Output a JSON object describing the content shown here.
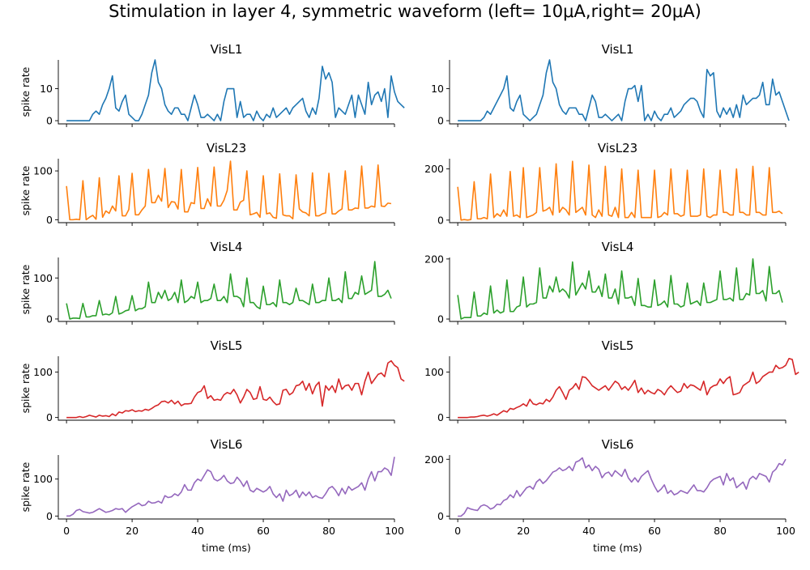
{
  "figure": {
    "suptitle": "Stimulation in layer 4, symmetric waveform (left= 10μA,right= 20μA)"
  },
  "chart_data": [
    {
      "type": "line",
      "title": "VisL1",
      "ylabel": "spike rate",
      "xlabel": "",
      "color": "#1f77b4",
      "xlim": [
        -2.5,
        100
      ],
      "ylim": [
        -1,
        19
      ],
      "yticks": [
        0,
        10
      ],
      "xticks": [
        0,
        20,
        40,
        60,
        80,
        100
      ],
      "show_xticklabels": false,
      "x_start": 0,
      "x_step": 1,
      "values": [
        0,
        0,
        0,
        0,
        0,
        0,
        0,
        0,
        2,
        3,
        2,
        5,
        7,
        10,
        14,
        4,
        3,
        6,
        8,
        2,
        1,
        0,
        0,
        2,
        5,
        8,
        15,
        19,
        12,
        10,
        5,
        3,
        2,
        4,
        4,
        2,
        2,
        0,
        4,
        8,
        5,
        1,
        1,
        2,
        1,
        0,
        2,
        0,
        6,
        10,
        10,
        10,
        1,
        6,
        1,
        2,
        2,
        0,
        3,
        1,
        0,
        2,
        1,
        4,
        1,
        2,
        3,
        4,
        2,
        4,
        5,
        6,
        7,
        3,
        1,
        4,
        2,
        7,
        17,
        13,
        15,
        12,
        1,
        4,
        3,
        2,
        5,
        8,
        1,
        8,
        5,
        2,
        12,
        5,
        8,
        9,
        6,
        10,
        1,
        14,
        9,
        6,
        5,
        4
      ]
    },
    {
      "type": "line",
      "title": "VisL1",
      "ylabel": "",
      "xlabel": "",
      "color": "#1f77b4",
      "xlim": [
        -2.5,
        100
      ],
      "ylim": [
        -1,
        19
      ],
      "yticks": [
        0,
        10
      ],
      "xticks": [
        0,
        20,
        40,
        60,
        80,
        100
      ],
      "show_xticklabels": false,
      "x_start": 0,
      "x_step": 1,
      "values": [
        0,
        0,
        0,
        0,
        0,
        0,
        0,
        0,
        1,
        3,
        2,
        4,
        6,
        8,
        10,
        14,
        4,
        3,
        6,
        8,
        2,
        1,
        0,
        1,
        2,
        5,
        8,
        15,
        19,
        12,
        10,
        5,
        3,
        2,
        4,
        4,
        4,
        2,
        2,
        0,
        4,
        8,
        6,
        1,
        1,
        2,
        1,
        0,
        1,
        2,
        0,
        6,
        10,
        10,
        11,
        6,
        11,
        0,
        2,
        0,
        3,
        1,
        0,
        2,
        2,
        4,
        1,
        2,
        3,
        5,
        6,
        7,
        7,
        6,
        3,
        1,
        16,
        14,
        15,
        3,
        1,
        4,
        2,
        4,
        1,
        5,
        1,
        8,
        5,
        6,
        7,
        7,
        8,
        12,
        5,
        5,
        13,
        8,
        9,
        6,
        3,
        0
      ]
    },
    {
      "type": "line",
      "title": "VisL23",
      "ylabel": "spike rate",
      "xlabel": "",
      "color": "#ff7f0e",
      "xlim": [
        -2.5,
        100
      ],
      "ylim": [
        -6,
        125
      ],
      "yticks": [
        0,
        100
      ],
      "xticks": [
        0,
        20,
        40,
        60,
        80,
        100
      ],
      "show_xticklabels": false,
      "x_start": 0,
      "x_step": 1,
      "values": [
        69,
        0,
        0,
        1,
        0,
        80,
        0,
        5,
        9,
        1,
        86,
        5,
        18,
        13,
        28,
        18,
        90,
        8,
        8,
        21,
        95,
        10,
        10,
        20,
        28,
        103,
        35,
        35,
        50,
        38,
        105,
        25,
        37,
        36,
        22,
        103,
        16,
        16,
        35,
        33,
        107,
        23,
        23,
        43,
        28,
        108,
        28,
        28,
        40,
        60,
        120,
        20,
        20,
        36,
        40,
        100,
        10,
        12,
        15,
        5,
        90,
        12,
        14,
        5,
        3,
        94,
        10,
        8,
        8,
        2,
        92,
        22,
        16,
        14,
        8,
        96,
        8,
        8,
        12,
        14,
        95,
        12,
        12,
        18,
        22,
        100,
        20,
        20,
        24,
        23,
        110,
        24,
        24,
        28,
        26,
        112,
        28,
        27,
        34,
        33
      ]
    },
    {
      "type": "line",
      "title": "VisL23",
      "ylabel": "",
      "xlabel": "",
      "color": "#ff7f0e",
      "xlim": [
        -2.5,
        100
      ],
      "ylim": [
        -10,
        240
      ],
      "yticks": [
        0,
        200
      ],
      "xticks": [
        0,
        20,
        40,
        60,
        80,
        100
      ],
      "show_xticklabels": false,
      "x_start": 0,
      "x_step": 1,
      "values": [
        130,
        0,
        2,
        0,
        2,
        150,
        5,
        5,
        10,
        5,
        180,
        10,
        25,
        15,
        40,
        15,
        190,
        15,
        20,
        10,
        205,
        10,
        15,
        20,
        30,
        205,
        35,
        40,
        50,
        20,
        220,
        30,
        50,
        40,
        20,
        230,
        30,
        40,
        50,
        20,
        215,
        20,
        10,
        40,
        15,
        210,
        20,
        15,
        50,
        10,
        200,
        10,
        10,
        30,
        10,
        195,
        10,
        10,
        10,
        10,
        195,
        10,
        15,
        30,
        20,
        200,
        25,
        25,
        15,
        20,
        195,
        15,
        15,
        15,
        20,
        200,
        15,
        10,
        20,
        20,
        195,
        30,
        30,
        20,
        20,
        200,
        30,
        30,
        20,
        20,
        210,
        30,
        30,
        20,
        20,
        205,
        30,
        30,
        35,
        25
      ]
    },
    {
      "type": "line",
      "title": "VisL4",
      "ylabel": "spike rate",
      "xlabel": "",
      "color": "#2ca02c",
      "xlim": [
        -2.5,
        100
      ],
      "ylim": [
        -6,
        150
      ],
      "yticks": [
        0,
        100
      ],
      "xticks": [
        0,
        20,
        40,
        60,
        80,
        100
      ],
      "show_xticklabels": false,
      "x_start": 0,
      "x_step": 1,
      "values": [
        38,
        0,
        2,
        2,
        1,
        38,
        5,
        5,
        8,
        8,
        45,
        10,
        12,
        10,
        15,
        55,
        12,
        15,
        20,
        22,
        57,
        20,
        25,
        25,
        30,
        90,
        40,
        40,
        65,
        50,
        70,
        45,
        50,
        65,
        40,
        95,
        40,
        45,
        55,
        50,
        90,
        40,
        45,
        45,
        50,
        85,
        45,
        45,
        55,
        40,
        110,
        55,
        55,
        50,
        30,
        100,
        40,
        40,
        30,
        25,
        80,
        35,
        35,
        40,
        30,
        95,
        40,
        40,
        35,
        40,
        75,
        45,
        45,
        40,
        35,
        85,
        40,
        40,
        45,
        45,
        100,
        45,
        45,
        50,
        40,
        115,
        50,
        50,
        65,
        60,
        105,
        60,
        65,
        70,
        140,
        55,
        55,
        60,
        70,
        50
      ]
    },
    {
      "type": "line",
      "title": "VisL4",
      "ylabel": "",
      "xlabel": "",
      "color": "#2ca02c",
      "xlim": [
        -2.5,
        100
      ],
      "ylim": [
        -8,
        205
      ],
      "yticks": [
        0,
        200
      ],
      "xticks": [
        0,
        20,
        40,
        60,
        80,
        100
      ],
      "show_xticklabels": false,
      "x_start": 0,
      "x_step": 1,
      "values": [
        80,
        0,
        5,
        5,
        5,
        90,
        10,
        10,
        20,
        15,
        110,
        20,
        30,
        20,
        25,
        130,
        25,
        25,
        40,
        45,
        140,
        40,
        50,
        50,
        55,
        170,
        70,
        70,
        110,
        90,
        140,
        90,
        100,
        90,
        70,
        190,
        80,
        100,
        120,
        100,
        160,
        90,
        90,
        110,
        75,
        150,
        70,
        70,
        100,
        50,
        160,
        70,
        70,
        75,
        45,
        135,
        45,
        45,
        40,
        40,
        130,
        45,
        50,
        60,
        40,
        145,
        50,
        50,
        40,
        45,
        120,
        50,
        55,
        60,
        45,
        120,
        55,
        55,
        60,
        65,
        160,
        65,
        65,
        70,
        60,
        170,
        65,
        65,
        85,
        80,
        200,
        85,
        85,
        95,
        60,
        175,
        85,
        85,
        95,
        55
      ]
    },
    {
      "type": "line",
      "title": "VisL5",
      "ylabel": "spike rate",
      "xlabel": "",
      "color": "#d62728",
      "xlim": [
        -2.5,
        100
      ],
      "ylim": [
        -6,
        135
      ],
      "yticks": [
        0,
        100
      ],
      "xticks": [
        0,
        20,
        40,
        60,
        80,
        100
      ],
      "show_xticklabels": false,
      "x_start": 0,
      "x_step": 1,
      "values": [
        0,
        0,
        0,
        0,
        2,
        0,
        2,
        5,
        3,
        1,
        5,
        3,
        4,
        2,
        8,
        4,
        12,
        10,
        15,
        14,
        17,
        13,
        15,
        14,
        18,
        16,
        20,
        25,
        28,
        35,
        36,
        32,
        38,
        30,
        36,
        26,
        30,
        30,
        31,
        45,
        55,
        58,
        70,
        42,
        48,
        38,
        40,
        38,
        50,
        55,
        52,
        62,
        50,
        32,
        45,
        62,
        55,
        40,
        42,
        68,
        40,
        38,
        45,
        35,
        28,
        30,
        60,
        62,
        50,
        55,
        70,
        72,
        80,
        60,
        75,
        52,
        70,
        78,
        25,
        70,
        60,
        70,
        55,
        85,
        62,
        70,
        72,
        60,
        75,
        75,
        50,
        80,
        100,
        75,
        85,
        95,
        98,
        90,
        120,
        125,
        115,
        110,
        85,
        80
      ]
    },
    {
      "type": "line",
      "title": "VisL5",
      "ylabel": "",
      "xlabel": "",
      "color": "#d62728",
      "xlim": [
        -2.5,
        100
      ],
      "ylim": [
        -6,
        135
      ],
      "yticks": [
        0,
        100
      ],
      "xticks": [
        0,
        20,
        40,
        60,
        80,
        100
      ],
      "show_xticklabels": false,
      "x_start": 0,
      "x_step": 1,
      "values": [
        0,
        0,
        0,
        0,
        1,
        1,
        2,
        4,
        5,
        3,
        5,
        8,
        5,
        10,
        15,
        12,
        20,
        18,
        22,
        25,
        30,
        25,
        40,
        30,
        28,
        32,
        30,
        40,
        35,
        45,
        60,
        68,
        55,
        40,
        60,
        65,
        75,
        62,
        90,
        88,
        80,
        70,
        65,
        60,
        65,
        70,
        60,
        70,
        80,
        75,
        62,
        68,
        60,
        70,
        82,
        55,
        65,
        52,
        60,
        55,
        52,
        62,
        58,
        50,
        62,
        70,
        62,
        55,
        58,
        75,
        65,
        72,
        70,
        65,
        60,
        80,
        50,
        65,
        70,
        72,
        85,
        75,
        85,
        90,
        50,
        52,
        55,
        70,
        75,
        80,
        100,
        75,
        80,
        90,
        95,
        100,
        100,
        115,
        108,
        110,
        115,
        130,
        128,
        95,
        100
      ]
    },
    {
      "type": "line",
      "title": "VisL6",
      "ylabel": "spike rate",
      "xlabel": "time (ms)",
      "color": "#9467bd",
      "xlim": [
        -2.5,
        100
      ],
      "ylim": [
        -8,
        165
      ],
      "yticks": [
        0,
        100
      ],
      "xticks": [
        0,
        20,
        40,
        60,
        80,
        100
      ],
      "show_xticklabels": true,
      "x_start": 0,
      "x_step": 1,
      "values": [
        0,
        0,
        5,
        15,
        18,
        12,
        10,
        8,
        10,
        15,
        20,
        15,
        10,
        12,
        15,
        20,
        18,
        20,
        10,
        18,
        25,
        30,
        35,
        28,
        30,
        40,
        35,
        36,
        40,
        35,
        55,
        50,
        52,
        60,
        55,
        65,
        85,
        70,
        70,
        90,
        100,
        95,
        110,
        125,
        120,
        100,
        95,
        100,
        110,
        95,
        88,
        90,
        105,
        95,
        80,
        95,
        70,
        65,
        75,
        70,
        65,
        70,
        80,
        60,
        50,
        60,
        40,
        70,
        55,
        60,
        70,
        50,
        65,
        55,
        65,
        50,
        55,
        50,
        48,
        60,
        75,
        80,
        70,
        55,
        75,
        60,
        80,
        70,
        75,
        80,
        90,
        70,
        100,
        120,
        95,
        120,
        120,
        130,
        125,
        110,
        160
      ]
    },
    {
      "type": "line",
      "title": "VisL6",
      "ylabel": "",
      "xlabel": "time (ms)",
      "color": "#9467bd",
      "xlim": [
        -2.5,
        100
      ],
      "ylim": [
        -10,
        215
      ],
      "yticks": [
        0,
        200
      ],
      "xticks": [
        0,
        20,
        40,
        60,
        80,
        100
      ],
      "show_xticklabels": true,
      "x_start": 0,
      "x_step": 1,
      "values": [
        0,
        0,
        10,
        30,
        25,
        22,
        20,
        35,
        40,
        35,
        25,
        30,
        42,
        40,
        55,
        60,
        75,
        65,
        90,
        70,
        85,
        100,
        105,
        95,
        120,
        130,
        115,
        125,
        140,
        155,
        160,
        170,
        160,
        165,
        175,
        160,
        190,
        195,
        205,
        170,
        180,
        160,
        175,
        165,
        135,
        150,
        155,
        140,
        160,
        150,
        140,
        165,
        135,
        120,
        135,
        120,
        140,
        150,
        160,
        130,
        105,
        85,
        95,
        110,
        80,
        90,
        75,
        80,
        90,
        85,
        80,
        95,
        110,
        90,
        90,
        85,
        100,
        120,
        130,
        135,
        140,
        110,
        150,
        125,
        135,
        100,
        110,
        120,
        95,
        130,
        140,
        130,
        150,
        145,
        140,
        120,
        155,
        165,
        185,
        180,
        200
      ]
    }
  ]
}
